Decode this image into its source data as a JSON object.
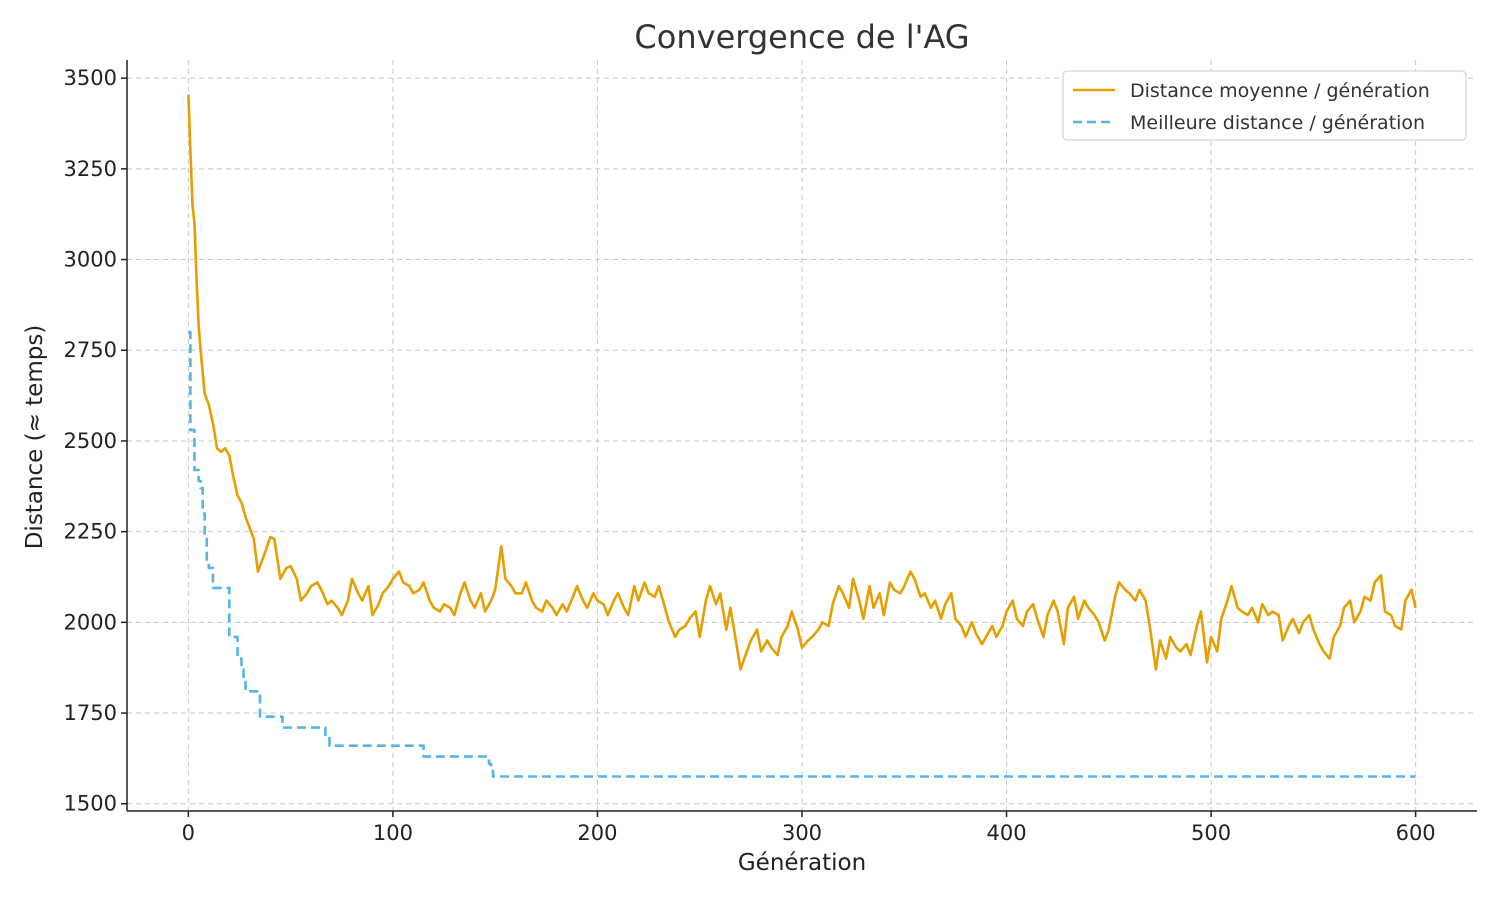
{
  "chart_data": {
    "type": "line",
    "title": "Convergence de l'AG",
    "xlabel": "Génération",
    "ylabel": "Distance (≈ temps)",
    "xlim": [
      -30,
      630
    ],
    "ylim": [
      1480,
      3550
    ],
    "xticks": [
      0,
      100,
      200,
      300,
      400,
      500,
      600
    ],
    "yticks": [
      1500,
      1750,
      2000,
      2250,
      2500,
      2750,
      3000,
      3250,
      3500
    ],
    "grid": true,
    "legend_position": "top-right",
    "series": [
      {
        "name": "Distance moyenne / génération",
        "color": "#E69F00",
        "style": "solid",
        "x": [
          0,
          1,
          2,
          3,
          4,
          5,
          6,
          8,
          10,
          12,
          14,
          16,
          18,
          20,
          22,
          24,
          26,
          28,
          30,
          32,
          34,
          36,
          38,
          40,
          42,
          45,
          48,
          50,
          53,
          55,
          58,
          60,
          63,
          65,
          68,
          70,
          73,
          75,
          78,
          80,
          83,
          85,
          88,
          90,
          93,
          95,
          98,
          100,
          103,
          105,
          108,
          110,
          113,
          115,
          118,
          120,
          123,
          125,
          128,
          130,
          133,
          135,
          138,
          140,
          143,
          145,
          148,
          150,
          153,
          155,
          158,
          160,
          163,
          165,
          168,
          170,
          173,
          175,
          178,
          180,
          183,
          185,
          188,
          190,
          193,
          195,
          198,
          200,
          203,
          205,
          208,
          210,
          213,
          215,
          218,
          220,
          223,
          225,
          228,
          230,
          233,
          235,
          238,
          240,
          243,
          245,
          248,
          250,
          253,
          255,
          258,
          260,
          263,
          265,
          268,
          270,
          273,
          275,
          278,
          280,
          283,
          285,
          288,
          290,
          293,
          295,
          298,
          300,
          303,
          305,
          308,
          310,
          313,
          315,
          318,
          320,
          323,
          325,
          328,
          330,
          333,
          335,
          338,
          340,
          343,
          345,
          348,
          350,
          353,
          355,
          358,
          360,
          363,
          365,
          368,
          370,
          373,
          375,
          378,
          380,
          383,
          385,
          388,
          390,
          393,
          395,
          398,
          400,
          403,
          405,
          408,
          410,
          413,
          415,
          418,
          420,
          423,
          425,
          428,
          430,
          433,
          435,
          438,
          440,
          443,
          445,
          448,
          450,
          453,
          455,
          458,
          460,
          463,
          465,
          468,
          470,
          473,
          475,
          478,
          480,
          483,
          485,
          488,
          490,
          493,
          495,
          498,
          500,
          503,
          505,
          508,
          510,
          513,
          515,
          518,
          520,
          523,
          525,
          528,
          530,
          533,
          535,
          538,
          540,
          543,
          545,
          548,
          550,
          553,
          555,
          558,
          560,
          563,
          565,
          568,
          570,
          573,
          575,
          578,
          580,
          583,
          585,
          588,
          590,
          593,
          595,
          598,
          600
        ],
        "values": [
          3455,
          3300,
          3150,
          3100,
          2950,
          2820,
          2750,
          2630,
          2600,
          2550,
          2480,
          2470,
          2480,
          2460,
          2400,
          2350,
          2330,
          2290,
          2260,
          2230,
          2140,
          2170,
          2200,
          2235,
          2230,
          2120,
          2150,
          2155,
          2120,
          2060,
          2080,
          2100,
          2110,
          2090,
          2050,
          2060,
          2040,
          2020,
          2060,
          2120,
          2080,
          2060,
          2100,
          2020,
          2050,
          2080,
          2100,
          2120,
          2140,
          2110,
          2100,
          2080,
          2090,
          2110,
          2060,
          2040,
          2030,
          2050,
          2040,
          2020,
          2080,
          2110,
          2060,
          2040,
          2080,
          2030,
          2060,
          2090,
          2210,
          2120,
          2100,
          2080,
          2080,
          2110,
          2060,
          2040,
          2030,
          2060,
          2040,
          2020,
          2050,
          2030,
          2070,
          2100,
          2060,
          2040,
          2080,
          2060,
          2050,
          2020,
          2060,
          2080,
          2040,
          2020,
          2100,
          2060,
          2110,
          2080,
          2070,
          2100,
          2040,
          2000,
          1960,
          1980,
          1990,
          2010,
          2030,
          1960,
          2060,
          2100,
          2050,
          2080,
          1980,
          2040,
          1940,
          1870,
          1920,
          1950,
          1980,
          1920,
          1950,
          1930,
          1910,
          1960,
          1990,
          2030,
          1980,
          1930,
          1950,
          1960,
          1980,
          2000,
          1990,
          2050,
          2100,
          2080,
          2040,
          2120,
          2060,
          2010,
          2100,
          2040,
          2080,
          2020,
          2110,
          2090,
          2080,
          2100,
          2140,
          2120,
          2070,
          2080,
          2040,
          2060,
          2010,
          2050,
          2080,
          2010,
          1990,
          1960,
          2000,
          1970,
          1940,
          1960,
          1990,
          1960,
          1990,
          2030,
          2060,
          2010,
          1990,
          2030,
          2050,
          2010,
          1960,
          2020,
          2060,
          2030,
          1940,
          2040,
          2070,
          2010,
          2060,
          2040,
          2020,
          2000,
          1950,
          1980,
          2070,
          2110,
          2090,
          2080,
          2060,
          2090,
          2060,
          1990,
          1870,
          1950,
          1900,
          1960,
          1930,
          1920,
          1940,
          1910,
          1990,
          2030,
          1890,
          1960,
          1920,
          2010,
          2060,
          2100,
          2040,
          2030,
          2020,
          2040,
          2000,
          2050,
          2020,
          2030,
          2020,
          1950,
          1990,
          2010,
          1970,
          2000,
          2020,
          1980,
          1940,
          1920,
          1900,
          1960,
          1990,
          2040,
          2060,
          2000,
          2030,
          2070,
          2060,
          2110,
          2130,
          2030,
          2020,
          1990,
          1980,
          2060,
          2090,
          2040
        ]
      },
      {
        "name": "Meilleure distance / génération",
        "color": "#56B4E9",
        "style": "dashed",
        "x": [
          0,
          1,
          1,
          3,
          3,
          5,
          5,
          6,
          6,
          7,
          7,
          8,
          8,
          9,
          9,
          10,
          10,
          12,
          12,
          20,
          20,
          24,
          24,
          26,
          26,
          27,
          27,
          28,
          28,
          35,
          35,
          46,
          46,
          67,
          67,
          69,
          69,
          115,
          115,
          147,
          147,
          148,
          148,
          149,
          149,
          600
        ],
        "values": [
          2800,
          2800,
          2530,
          2530,
          2420,
          2420,
          2390,
          2390,
          2370,
          2370,
          2300,
          2300,
          2230,
          2230,
          2170,
          2170,
          2150,
          2150,
          2095,
          2095,
          1960,
          1960,
          1900,
          1900,
          1870,
          1870,
          1850,
          1850,
          1810,
          1810,
          1740,
          1740,
          1710,
          1710,
          1690,
          1690,
          1660,
          1660,
          1630,
          1630,
          1610,
          1610,
          1590,
          1590,
          1575,
          1575
        ]
      }
    ]
  }
}
